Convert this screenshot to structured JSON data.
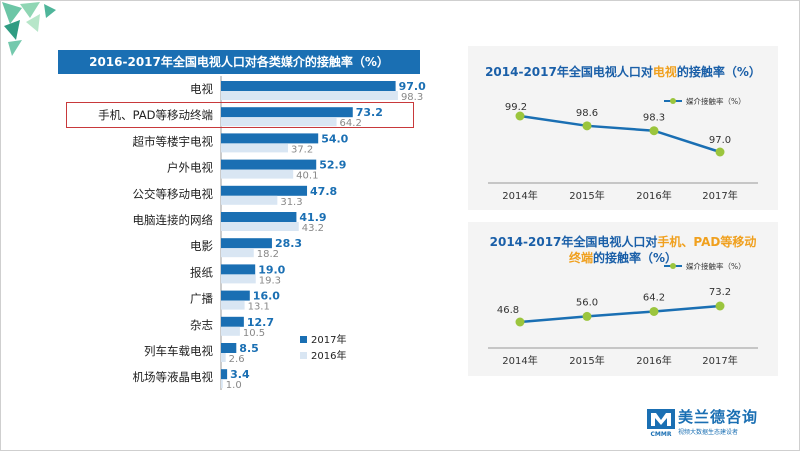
{
  "brand": {
    "name": "美兰德咨询",
    "short": "CMMR",
    "slogan": "视频大数据生态建设者"
  },
  "chart_data": [
    {
      "type": "bar",
      "title": "2016-2017年全国电视人口对各类媒介的接触率（%）",
      "categories": [
        "电视",
        "手机、PAD等移动终端",
        "超市等楼宇电视",
        "户外电视",
        "公交等移动电视",
        "电脑连接的网络",
        "电影",
        "报纸",
        "广播",
        "杂志",
        "列车车载电视",
        "机场等液晶电视"
      ],
      "series": [
        {
          "name": "2017年",
          "color": "#1a6fb3",
          "values": [
            97.0,
            73.2,
            54.0,
            52.9,
            47.8,
            41.9,
            28.3,
            19.0,
            16.0,
            12.7,
            8.5,
            3.4
          ]
        },
        {
          "name": "2016年",
          "color": "#d9e6f3",
          "values": [
            98.3,
            64.2,
            37.2,
            40.1,
            31.3,
            43.2,
            18.2,
            19.3,
            13.1,
            10.5,
            2.6,
            1.0
          ]
        }
      ],
      "highlight_category": "手机、PAD等移动终端",
      "legend": "bottom-right"
    },
    {
      "type": "line",
      "title_parts": [
        "2014-2017年全国电视人口对",
        "电视",
        "的接触率（%）"
      ],
      "x": [
        "2014年",
        "2015年",
        "2016年",
        "2017年"
      ],
      "series": [
        {
          "name": "媒介接触率（%）",
          "color": "#1a6fb3",
          "marker": "#9bc53d",
          "values": [
            99.2,
            98.6,
            98.3,
            97.0
          ]
        }
      ],
      "legend": "top-right"
    },
    {
      "type": "line",
      "title_parts": [
        "2014-2017年全国电视人口对",
        "手机、PAD等移动",
        "终端",
        "的接触率（%）"
      ],
      "x": [
        "2014年",
        "2015年",
        "2016年",
        "2017年"
      ],
      "series": [
        {
          "name": "媒介接触率（%）",
          "color": "#1a6fb3",
          "marker": "#9bc53d",
          "values": [
            46.8,
            56.0,
            64.2,
            73.2
          ]
        }
      ],
      "legend": "top-right"
    }
  ]
}
